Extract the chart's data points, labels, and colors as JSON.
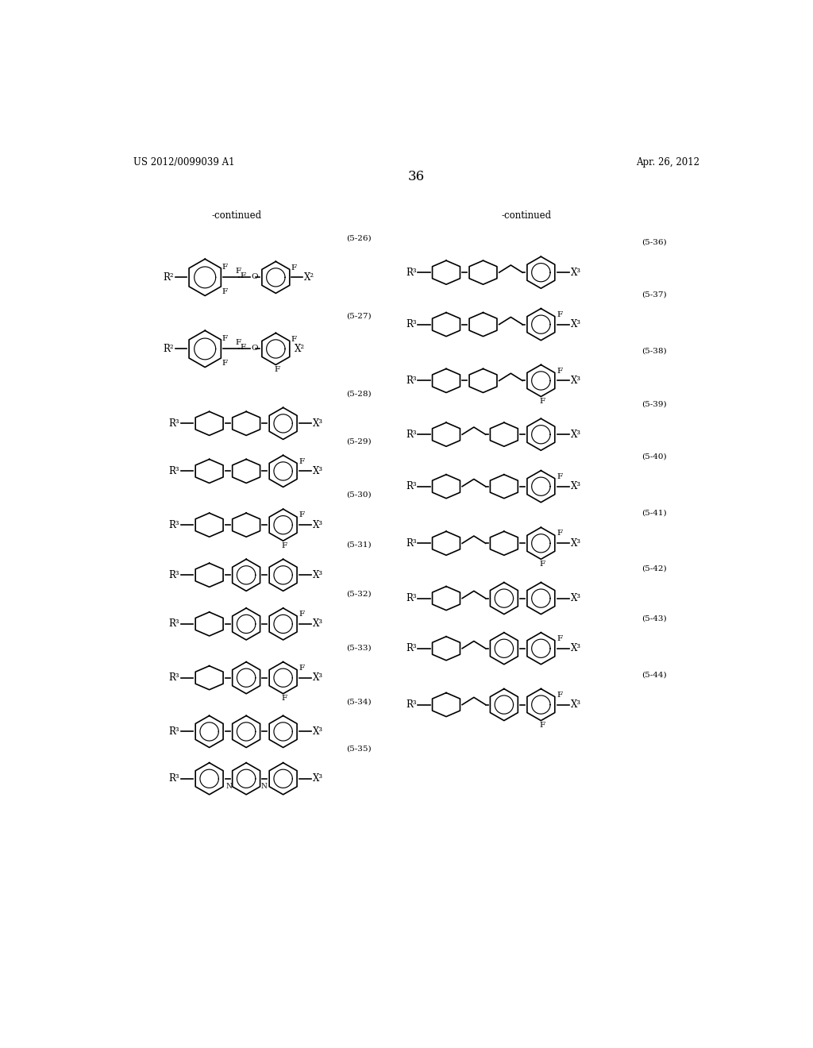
{
  "page_header_left": "US 2012/0099039 A1",
  "page_header_right": "Apr. 26, 2012",
  "page_number": "36",
  "background_color": "#ffffff",
  "text_color": "#000000",
  "continued_left": "-continued",
  "continued_right": "-continued"
}
